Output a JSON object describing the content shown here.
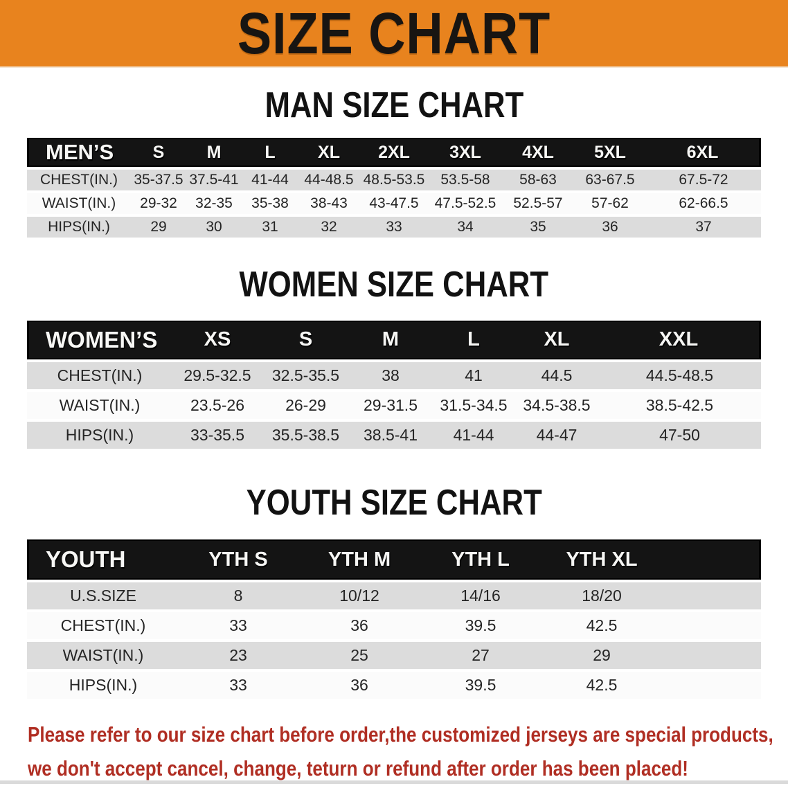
{
  "banner": {
    "title": "SIZE CHART",
    "bg_color": "#E8831E"
  },
  "sections": [
    {
      "heading": "MAN SIZE CHART",
      "table": {
        "header_label": "MEN’S",
        "columns": [
          "S",
          "M",
          "L",
          "XL",
          "2XL",
          "3XL",
          "4XL",
          "5XL",
          "6XL"
        ],
        "rows": [
          {
            "label": "CHEST(IN.)",
            "values": [
              "35-37.5",
              "37.5-41",
              "41-44",
              "44-48.5",
              "48.5-53.5",
              "53.5-58",
              "58-63",
              "63-67.5",
              "67.5-72"
            ]
          },
          {
            "label": "WAIST(IN.)",
            "values": [
              "29-32",
              "32-35",
              "35-38",
              "38-43",
              "43-47.5",
              "47.5-52.5",
              "52.5-57",
              "57-62",
              "62-66.5"
            ]
          },
          {
            "label": "HIPS(IN.)",
            "values": [
              "29",
              "30",
              "31",
              "32",
              "33",
              "34",
              "35",
              "36",
              "37"
            ]
          }
        ]
      }
    },
    {
      "heading": "WOMEN SIZE CHART",
      "table": {
        "header_label": "WOMEN’S",
        "columns": [
          "XS",
          "S",
          "M",
          "L",
          "XL",
          "XXL"
        ],
        "rows": [
          {
            "label": "CHEST(IN.)",
            "values": [
              "29.5-32.5",
              "32.5-35.5",
              "38",
              "41",
              "44.5",
              "44.5-48.5"
            ]
          },
          {
            "label": "WAIST(IN.)",
            "values": [
              "23.5-26",
              "26-29",
              "29-31.5",
              "31.5-34.5",
              "34.5-38.5",
              "38.5-42.5"
            ]
          },
          {
            "label": "HIPS(IN.)",
            "values": [
              "33-35.5",
              "35.5-38.5",
              "38.5-41",
              "41-44",
              "44-47",
              "47-50"
            ]
          }
        ]
      }
    },
    {
      "heading": "YOUTH SIZE CHART",
      "table": {
        "header_label": "YOUTH",
        "columns": [
          "YTH S",
          "YTH M",
          "YTH L",
          "YTH XL"
        ],
        "rows": [
          {
            "label": "U.S.SIZE",
            "values": [
              "8",
              "10/12",
              "14/16",
              "18/20"
            ]
          },
          {
            "label": "CHEST(IN.)",
            "values": [
              "33",
              "36",
              "39.5",
              "42.5"
            ]
          },
          {
            "label": "WAIST(IN.)",
            "values": [
              "23",
              "25",
              "27",
              "29"
            ]
          },
          {
            "label": "HIPS(IN.)",
            "values": [
              "33",
              "36",
              "39.5",
              "42.5"
            ]
          }
        ]
      }
    }
  ],
  "note": {
    "lines": [
      "Please refer to our size chart before order,the customized jerseys are special products,",
      "we don't accept cancel, change, teturn or refund after order has been placed!"
    ],
    "color": "#B02E23"
  },
  "colors": {
    "header_band": "#141414",
    "row_gray": "#DCDCDC",
    "row_white": "#FBFBFB"
  }
}
